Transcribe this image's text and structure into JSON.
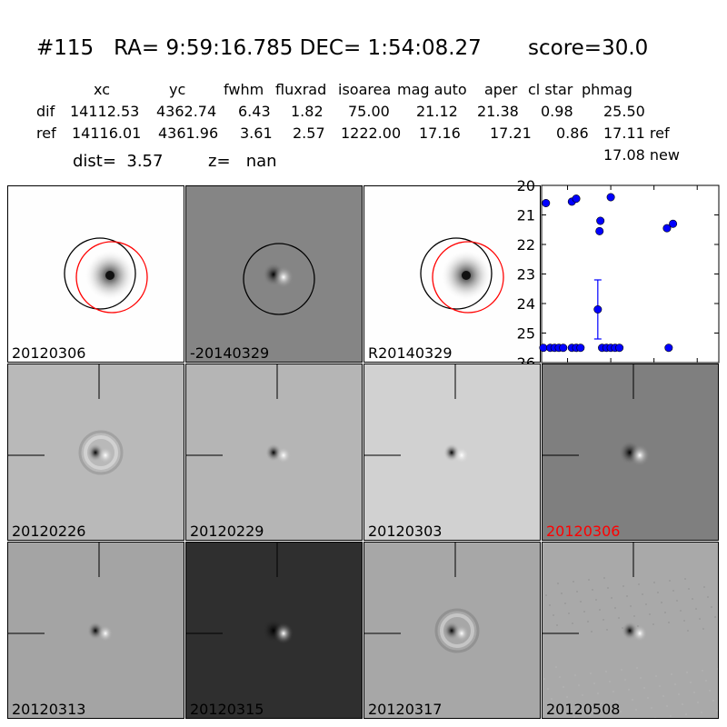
{
  "header": {
    "title_id": "#115",
    "title_ra": "RA= 9:59:16.785",
    "title_dec": "DEC= 1:54:08.27",
    "title_score": "score=30.0"
  },
  "table": {
    "columns": [
      "xc",
      "yc",
      "fwhm",
      "fluxrad",
      "isoarea",
      "mag auto",
      "aper",
      "cl star",
      "phmag"
    ],
    "rows": [
      {
        "label": "dif",
        "values": [
          "14112.53",
          "4362.74",
          "6.43",
          "1.82",
          "75.00",
          "21.12",
          "21.38",
          "0.98",
          "25.50"
        ]
      },
      {
        "label": "ref",
        "values": [
          "14116.01",
          "4361.96",
          "3.61",
          "2.57",
          "1222.00",
          "17.16",
          "17.21",
          "0.86",
          "17.11 ref"
        ]
      }
    ],
    "extra_phmag": "17.08 new"
  },
  "info": {
    "dist": "dist=  3.57",
    "z": "z=   nan"
  },
  "panels": [
    {
      "label": "20120306",
      "bg": "#fefefe",
      "kind": "blob"
    },
    {
      "label": "-20140329",
      "bg": "#858585",
      "kind": "dipole"
    },
    {
      "label": "R20140329",
      "bg": "#fefefe",
      "kind": "blob"
    },
    {
      "label": "20120226",
      "bg": "#b9b9b9",
      "kind": "dipole-ring"
    },
    {
      "label": "20120229",
      "bg": "#b5b5b5",
      "kind": "dipole"
    },
    {
      "label": "20120303",
      "bg": "#d1d1d1",
      "kind": "dipole"
    },
    {
      "label": "20120306",
      "bg": "#7f7f7f",
      "kind": "dipole",
      "label_color": "#ff0000"
    },
    {
      "label": "20120313",
      "bg": "#a4a4a4",
      "kind": "dipole"
    },
    {
      "label": "20120315",
      "bg": "#2f2f2f",
      "kind": "dipole"
    },
    {
      "label": "20120317",
      "bg": "#a7a7a7",
      "kind": "dipole-ring"
    },
    {
      "label": "20120508",
      "bg": "#a9a9a9",
      "kind": "dipole-noise"
    }
  ],
  "chart_data": {
    "type": "scatter",
    "xlim": [
      -80,
      125
    ],
    "ylim": [
      26,
      20
    ],
    "xticks": [
      -50,
      0,
      50,
      100
    ],
    "yticks": [
      20,
      21,
      22,
      23,
      24,
      25,
      26
    ],
    "marker_color": "#0000ff",
    "points": [
      {
        "x": -75,
        "y": 20.6
      },
      {
        "x": -45,
        "y": 20.55
      },
      {
        "x": -40,
        "y": 20.45
      },
      {
        "x": 0,
        "y": 20.4
      },
      {
        "x": -12,
        "y": 21.2
      },
      {
        "x": -13,
        "y": 21.55
      },
      {
        "x": -15,
        "y": 24.2
      },
      {
        "x": 65,
        "y": 21.45
      },
      {
        "x": 72,
        "y": 21.3
      },
      {
        "x": -78,
        "y": 25.5
      },
      {
        "x": -70,
        "y": 25.5
      },
      {
        "x": -65,
        "y": 25.5
      },
      {
        "x": -60,
        "y": 25.5
      },
      {
        "x": -55,
        "y": 25.5
      },
      {
        "x": -45,
        "y": 25.5
      },
      {
        "x": -40,
        "y": 25.5
      },
      {
        "x": -35,
        "y": 25.5
      },
      {
        "x": -10,
        "y": 25.5
      },
      {
        "x": -5,
        "y": 25.5
      },
      {
        "x": 0,
        "y": 25.5
      },
      {
        "x": 5,
        "y": 25.5
      },
      {
        "x": 10,
        "y": 25.5
      },
      {
        "x": 67,
        "y": 25.5
      }
    ],
    "errorbars": [
      {
        "x": -15,
        "y": 24.2,
        "low": 23.2,
        "high": 25.2
      }
    ]
  }
}
